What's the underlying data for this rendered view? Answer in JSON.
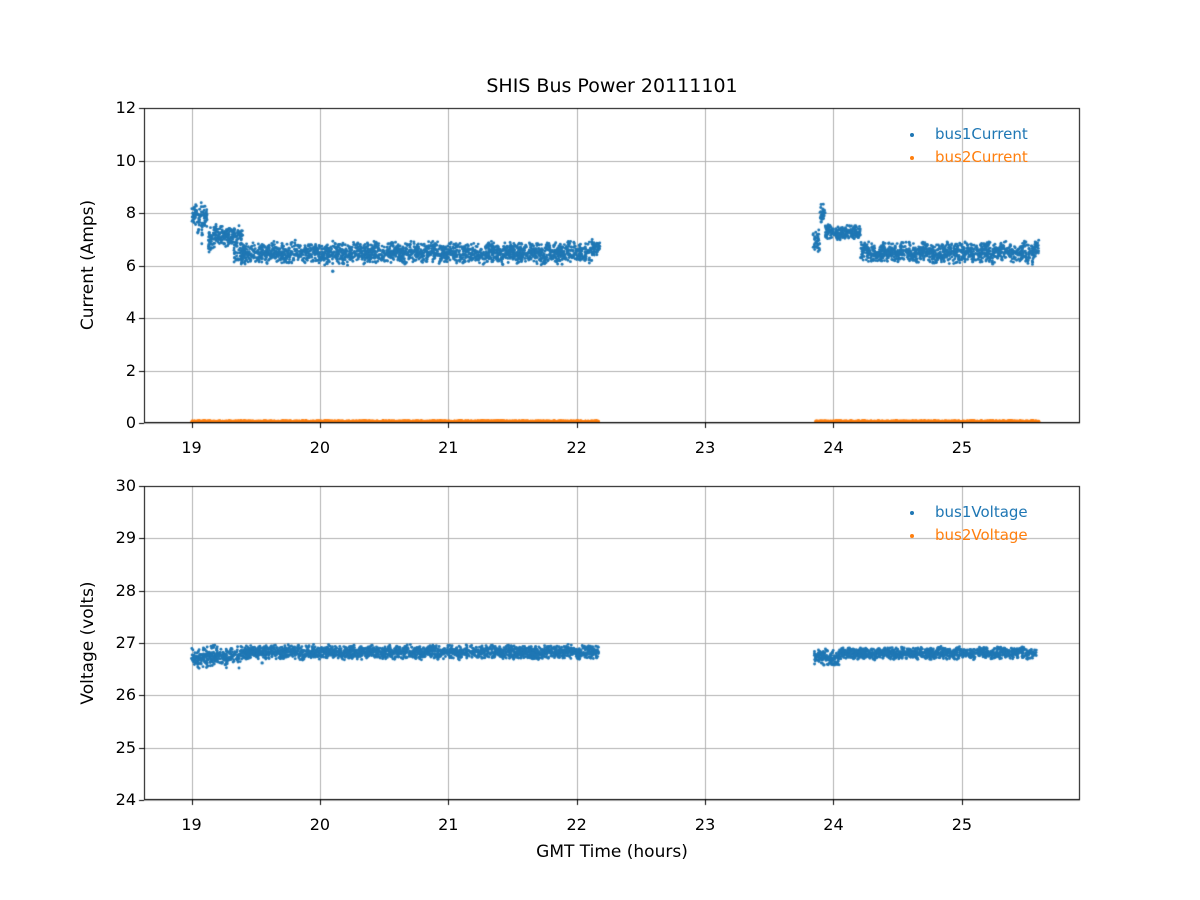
{
  "figure": {
    "title": "SHIS Bus Power 20111101",
    "background_color": "#ffffff",
    "grid_color": "#b0b0b0",
    "spine_color": "#000000"
  },
  "chart_data": [
    {
      "type": "scatter",
      "title": "SHIS Bus Power 20111101",
      "xlabel": "",
      "ylabel": "Current (Amps)",
      "xlim": [
        18.63,
        25.92
      ],
      "ylim": [
        0,
        12
      ],
      "xticks": [
        19,
        20,
        21,
        22,
        23,
        24,
        25
      ],
      "yticks": [
        0,
        2,
        4,
        6,
        8,
        10,
        12
      ],
      "grid": true,
      "legend_position": "upper right",
      "series": [
        {
          "name": "bus1Current",
          "color": "#1f77b4",
          "marker": "dot",
          "bands": [
            {
              "x0": 19.0,
              "x1": 19.045,
              "ylo": 7.5,
              "yhi": 8.45
            },
            {
              "x0": 19.045,
              "x1": 19.057,
              "ylo": 6.7,
              "yhi": 8.3
            },
            {
              "x0": 19.057,
              "x1": 19.077,
              "ylo": 7.4,
              "yhi": 8.45
            },
            {
              "x0": 19.077,
              "x1": 19.088,
              "ylo": 6.55,
              "yhi": 8.3
            },
            {
              "x0": 19.088,
              "x1": 19.125,
              "ylo": 7.4,
              "yhi": 8.4
            },
            {
              "x0": 19.13,
              "x1": 19.18,
              "ylo": 6.5,
              "yhi": 7.5
            },
            {
              "x0": 19.17,
              "x1": 19.4,
              "ylo": 6.7,
              "yhi": 7.6
            },
            {
              "x0": 19.33,
              "x1": 22.12,
              "ylo": 6.03,
              "yhi": 6.92
            },
            {
              "x0": 22.12,
              "x1": 22.18,
              "ylo": 6.3,
              "yhi": 7.02
            },
            {
              "x0": 23.84,
              "x1": 23.892,
              "ylo": 6.5,
              "yhi": 7.45
            },
            {
              "x0": 23.895,
              "x1": 23.935,
              "ylo": 7.62,
              "yhi": 8.35
            },
            {
              "x0": 23.935,
              "x1": 24.21,
              "ylo": 6.95,
              "yhi": 7.55
            },
            {
              "x0": 24.21,
              "x1": 25.56,
              "ylo": 6.05,
              "yhi": 6.93
            },
            {
              "x0": 25.56,
              "x1": 25.6,
              "ylo": 6.35,
              "yhi": 6.98
            }
          ],
          "outliers": [
            [
              20.1,
              5.78
            ]
          ]
        },
        {
          "name": "bus2Current",
          "color": "#ff7f0e",
          "marker": "dot",
          "bands": [
            {
              "x0": 19.0,
              "x1": 22.17,
              "ylo": 0.02,
              "yhi": 0.09
            },
            {
              "x0": 23.86,
              "x1": 25.6,
              "ylo": 0.02,
              "yhi": 0.09
            }
          ],
          "outliers": []
        }
      ]
    },
    {
      "type": "scatter",
      "title": "",
      "xlabel": "GMT Time (hours)",
      "ylabel": "Voltage (volts)",
      "xlim": [
        18.63,
        25.92
      ],
      "ylim": [
        24,
        30
      ],
      "xticks": [
        19,
        20,
        21,
        22,
        23,
        24,
        25
      ],
      "yticks": [
        24,
        25,
        26,
        27,
        28,
        29,
        30
      ],
      "grid": true,
      "legend_position": "upper right",
      "series": [
        {
          "name": "bus1Voltage",
          "color": "#1f77b4",
          "marker": "dot",
          "bands": [
            {
              "x0": 19.0,
              "x1": 19.06,
              "ylo": 26.45,
              "yhi": 26.92
            },
            {
              "x0": 19.06,
              "x1": 19.38,
              "ylo": 26.52,
              "yhi": 26.96
            },
            {
              "x0": 19.38,
              "x1": 22.17,
              "ylo": 26.68,
              "yhi": 26.97
            },
            {
              "x0": 23.85,
              "x1": 24.05,
              "ylo": 26.55,
              "yhi": 26.9
            },
            {
              "x0": 24.05,
              "x1": 25.58,
              "ylo": 26.68,
              "yhi": 26.93
            }
          ],
          "outliers": [
            [
              19.55,
              26.62
            ]
          ]
        },
        {
          "name": "bus2Voltage",
          "color": "#ff7f0e",
          "marker": "dot",
          "bands": [],
          "outliers": []
        }
      ]
    }
  ]
}
